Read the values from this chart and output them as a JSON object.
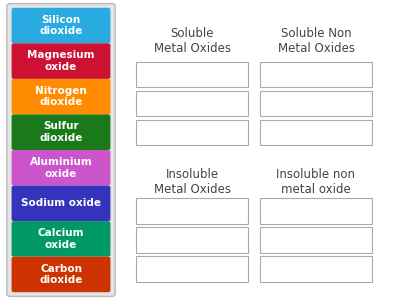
{
  "background_color": "#ffffff",
  "labels": [
    {
      "text": "Silicon\ndioxide",
      "color": "#29ABE2"
    },
    {
      "text": "Magnesium\noxide",
      "color": "#CC1133"
    },
    {
      "text": "Nitrogen\ndioxide",
      "color": "#FF8C00"
    },
    {
      "text": "Sulfur\ndioxide",
      "color": "#1A7A1A"
    },
    {
      "text": "Aluminium\noxide",
      "color": "#CC55CC"
    },
    {
      "text": "Sodium oxide",
      "color": "#3333BB"
    },
    {
      "text": "Calcium\noxide",
      "color": "#009966"
    },
    {
      "text": "Carbon\ndioxide",
      "color": "#CC3300"
    }
  ],
  "col1_header": "Soluble\nMetal Oxides",
  "col2_header": "Soluble Non\nMetal Oxides",
  "col3_header": "Insoluble\nMetal Oxides",
  "col4_header": "Insoluble non\nmetal oxide",
  "header_fontsize": 8.5,
  "label_fontsize": 7.5,
  "outer_box_color": "#dddddd",
  "answer_box_edge": "#aaaaaa",
  "text_color": "#444444"
}
